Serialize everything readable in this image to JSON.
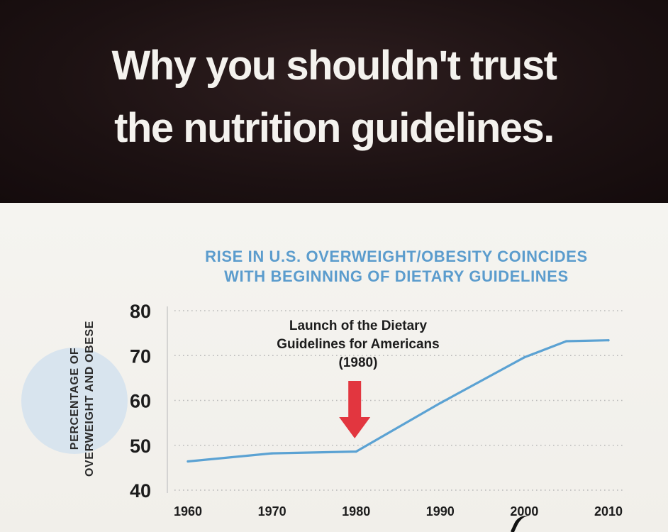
{
  "headline": {
    "line1": "Why you shouldn't trust",
    "line2": "the nutrition guidelines."
  },
  "colors": {
    "header_bg": "#1c1112",
    "headline_text": "#f4f2ee",
    "title_blue": "#5b9ccd",
    "line_blue": "#5ba2d3",
    "arrow_red": "#e2363f",
    "grid_dots": "#b9b9b9"
  },
  "chart_data": {
    "type": "line",
    "title_line1": "RISE IN U.S. OVERWEIGHT/OBESITY COINCIDES",
    "title_line2": "WITH BEGINNING OF DIETARY GUIDELINES",
    "ylabel_line1": "PERCENTAGE OF",
    "ylabel_line2": "OVERWEIGHT AND OBESE",
    "xlabel": "",
    "ylim": [
      40,
      80
    ],
    "xlim": [
      1960,
      2010
    ],
    "yticks": [
      "80",
      "70",
      "60",
      "50",
      "40"
    ],
    "xticks": [
      "1960",
      "1970",
      "1980",
      "1990",
      "2000",
      "2010"
    ],
    "grid": "dotted-horizontal",
    "series": [
      {
        "name": "Overweight and obese (%)",
        "points": [
          {
            "x": 1960,
            "y": 46.4
          },
          {
            "x": 1970,
            "y": 48.2
          },
          {
            "x": 1980,
            "y": 48.6
          },
          {
            "x": 1990,
            "y": 59.4
          },
          {
            "x": 2000,
            "y": 69.6
          },
          {
            "x": 2005,
            "y": 73.2
          },
          {
            "x": 2010,
            "y": 73.4
          }
        ]
      }
    ],
    "annotation": {
      "line1": "Launch of the Dietary",
      "line2": "Guidelines for Americans",
      "line3": "(1980)",
      "x": 1980
    }
  }
}
